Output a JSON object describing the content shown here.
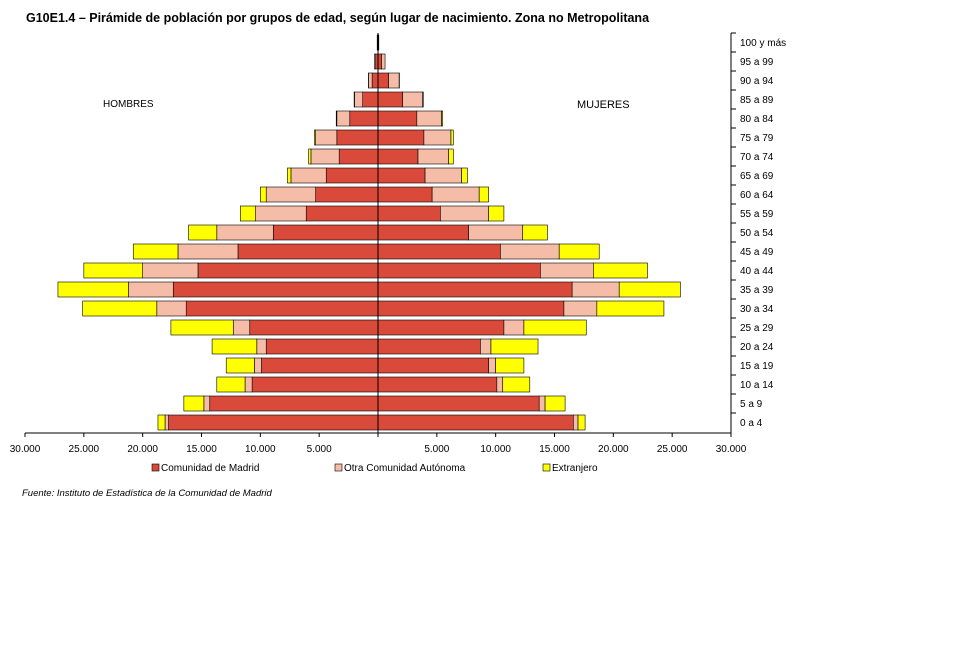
{
  "title": "G10E1.4 – Pirámide de población por grupos de edad, según lugar de nacimiento. Zona no Metropolitana",
  "source": "Fuente: Instituto de Estadística de la Comunidad de Madrid",
  "colors": {
    "madrid": "#D94A3A",
    "otra": "#F5BCA7",
    "extranjero": "#FFFF00",
    "border": "#000000"
  },
  "chart_data": {
    "type": "bar",
    "orientation": "horizontal-pyramid",
    "side_labels": {
      "left": "HOMBRES",
      "right": "MUJERES"
    },
    "x_ticks": [
      "30.000",
      "25.000",
      "20.000",
      "15.000",
      "10.000",
      "5.000",
      "",
      "5.000",
      "10.000",
      "15.000",
      "20.000",
      "25.000",
      "30.000"
    ],
    "xlim": [
      -30000,
      30000
    ],
    "categories": [
      "0 a 4",
      "5 a 9",
      "10 a 14",
      "15 a 19",
      "20 a 24",
      "25 a 29",
      "30 a 34",
      "35 a 39",
      "40 a 44",
      "45 a 49",
      "50 a 54",
      "55 a 59",
      "60 a 64",
      "65 a 69",
      "70 a 74",
      "75 a 79",
      "80 a 84",
      "85 a 89",
      "90 a 94",
      "95 a 99",
      "100 y más"
    ],
    "series": [
      {
        "name": "Comunidad de Madrid",
        "hombres": [
          17800,
          14300,
          10700,
          9900,
          9500,
          10900,
          16300,
          17400,
          15300,
          11900,
          8900,
          6100,
          5300,
          4400,
          3300,
          3500,
          2400,
          1300,
          500,
          200,
          50
        ],
        "mujeres": [
          16600,
          13700,
          10100,
          9400,
          8700,
          10700,
          15800,
          16500,
          13800,
          10400,
          7700,
          5300,
          4600,
          4000,
          3400,
          3900,
          3300,
          2100,
          900,
          300,
          50
        ]
      },
      {
        "name": "Otra Comunidad Autónoma",
        "hombres": [
          300,
          500,
          600,
          600,
          800,
          1400,
          2500,
          3800,
          4700,
          5100,
          4800,
          4300,
          4200,
          3000,
          2400,
          1800,
          1100,
          700,
          300,
          100,
          20
        ],
        "mujeres": [
          400,
          500,
          500,
          600,
          900,
          1700,
          2800,
          4000,
          4500,
          5000,
          4600,
          4100,
          4000,
          3100,
          2600,
          2300,
          2100,
          1700,
          900,
          300,
          20
        ]
      },
      {
        "name": "Extranjero",
        "hombres": [
          600,
          1700,
          2400,
          2400,
          3800,
          5300,
          6300,
          6000,
          5000,
          3800,
          2400,
          1300,
          500,
          300,
          200,
          100,
          50,
          30,
          10,
          0,
          0
        ],
        "mujeres": [
          600,
          1700,
          2300,
          2400,
          4000,
          5300,
          5700,
          5200,
          4600,
          3400,
          2100,
          1300,
          800,
          500,
          400,
          200,
          100,
          50,
          20,
          0,
          0
        ]
      }
    ]
  }
}
